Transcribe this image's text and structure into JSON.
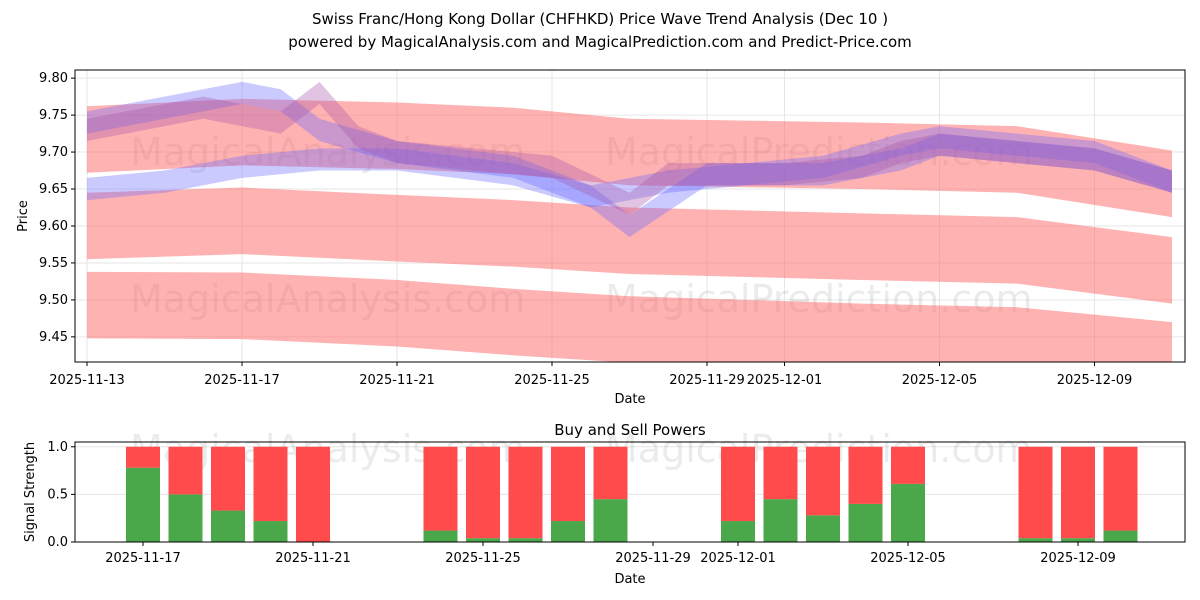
{
  "title_line1": "Swiss Franc/Hong Kong Dollar (CHFHKD) Price Wave Trend Analysis (Dec 10 )",
  "title_line2": "powered by MagicalAnalysis.com and MagicalPrediction.com and Predict-Price.com",
  "watermarks": [
    "MagicalAnalysis.com",
    "MagicalPrediction.com"
  ],
  "chart_data": [
    {
      "type": "area",
      "xlabel": "Date",
      "ylabel": "Price",
      "xlim": [
        "2025-11-12.7",
        "2025-12-11.3"
      ],
      "ylim": [
        9.416,
        9.811
      ],
      "yticks": [
        "9.45",
        "9.50",
        "9.55",
        "9.60",
        "9.65",
        "9.70",
        "9.75",
        "9.80"
      ],
      "xticks": [
        "2025-11-13",
        "2025-11-17",
        "2025-11-21",
        "2025-11-25",
        "2025-11-29",
        "2025-12-01",
        "2025-12-05",
        "2025-12-09"
      ],
      "grid": true,
      "bands": [
        {
          "name": "red-band-1",
          "color": "#ff6666",
          "opacity": 0.5,
          "x": [
            0,
            4,
            8,
            11,
            14,
            20,
            24,
            28
          ],
          "center": [
            9.717,
            9.727,
            9.722,
            9.715,
            9.7,
            9.695,
            9.69,
            9.657
          ],
          "width": 0.09
        },
        {
          "name": "red-band-2",
          "color": "#ff6666",
          "opacity": 0.5,
          "x": [
            0,
            4,
            8,
            11,
            14,
            20,
            24,
            28
          ],
          "center": [
            9.6,
            9.607,
            9.597,
            9.59,
            9.58,
            9.572,
            9.567,
            9.54
          ],
          "width": 0.09
        },
        {
          "name": "red-band-3",
          "color": "#ff6666",
          "opacity": 0.5,
          "x": [
            0,
            4,
            8,
            11,
            14,
            20,
            24,
            28
          ],
          "center": [
            9.493,
            9.492,
            9.482,
            9.47,
            9.46,
            9.45,
            9.445,
            9.425
          ],
          "width": 0.09
        },
        {
          "name": "blue-wave-1",
          "color": "#6666ff",
          "opacity": 0.35,
          "x": [
            0,
            2,
            4,
            5,
            6,
            8,
            11,
            13,
            15,
            17,
            19,
            21,
            22,
            24,
            26,
            28
          ],
          "center": [
            9.74,
            9.76,
            9.78,
            9.77,
            9.73,
            9.7,
            9.68,
            9.64,
            9.66,
            9.67,
            9.68,
            9.71,
            9.72,
            9.71,
            9.7,
            9.66
          ],
          "width": 0.03
        },
        {
          "name": "blue-wave-2",
          "color": "#6666ff",
          "opacity": 0.35,
          "x": [
            0,
            2,
            4,
            6,
            8,
            11,
            13,
            14,
            16,
            19,
            21,
            22,
            24,
            26,
            28
          ],
          "center": [
            9.65,
            9.66,
            9.68,
            9.69,
            9.69,
            9.67,
            9.64,
            9.6,
            9.67,
            9.67,
            9.69,
            9.71,
            9.7,
            9.69,
            9.66
          ],
          "width": 0.03
        },
        {
          "name": "purple-wave",
          "color": "#aa55aa",
          "opacity": 0.35,
          "x": [
            0,
            3,
            5,
            6,
            7,
            8,
            10,
            12,
            14,
            15,
            18,
            20,
            21,
            22,
            24,
            26,
            28
          ],
          "center": [
            9.73,
            9.76,
            9.74,
            9.78,
            9.72,
            9.7,
            9.69,
            9.68,
            9.63,
            9.67,
            9.67,
            9.68,
            9.7,
            9.71,
            9.7,
            9.69,
            9.66
          ],
          "width": 0.03
        }
      ]
    },
    {
      "type": "bar",
      "title": "Buy and Sell Powers",
      "xlabel": "Date",
      "ylabel": "Signal Strength",
      "ylim": [
        0,
        1.05
      ],
      "yticks": [
        "0.0",
        "0.5",
        "1.0"
      ],
      "xticks": [
        "2025-11-17",
        "2025-11-21",
        "2025-11-25",
        "2025-11-29",
        "2025-12-01",
        "2025-12-05",
        "2025-12-09"
      ],
      "categories": [
        "2025-11-17",
        "2025-11-18",
        "2025-11-19",
        "2025-11-20",
        "2025-11-21",
        "2025-11-24",
        "2025-11-25",
        "2025-11-26",
        "2025-11-27",
        "2025-11-28",
        "2025-12-01",
        "2025-12-02",
        "2025-12-03",
        "2025-12-04",
        "2025-12-05",
        "2025-12-08",
        "2025-12-09",
        "2025-12-10"
      ],
      "day_offsets": [
        0,
        1,
        2,
        3,
        4,
        7,
        8,
        9,
        10,
        11,
        14,
        15,
        16,
        17,
        18,
        21,
        22,
        23
      ],
      "series": [
        {
          "name": "Buy",
          "color": "#4aa84a",
          "values": [
            0.78,
            0.5,
            0.33,
            0.22,
            0.0,
            0.12,
            0.04,
            0.04,
            0.22,
            0.45,
            0.22,
            0.45,
            0.28,
            0.4,
            0.61,
            0.04,
            0.04,
            0.12
          ]
        },
        {
          "name": "Sell",
          "color": "#ff4b4b",
          "values": [
            0.22,
            0.5,
            0.67,
            0.78,
            1.0,
            0.88,
            0.96,
            0.96,
            0.78,
            0.55,
            0.78,
            0.55,
            0.72,
            0.6,
            0.39,
            0.96,
            0.96,
            0.88
          ]
        }
      ]
    }
  ]
}
